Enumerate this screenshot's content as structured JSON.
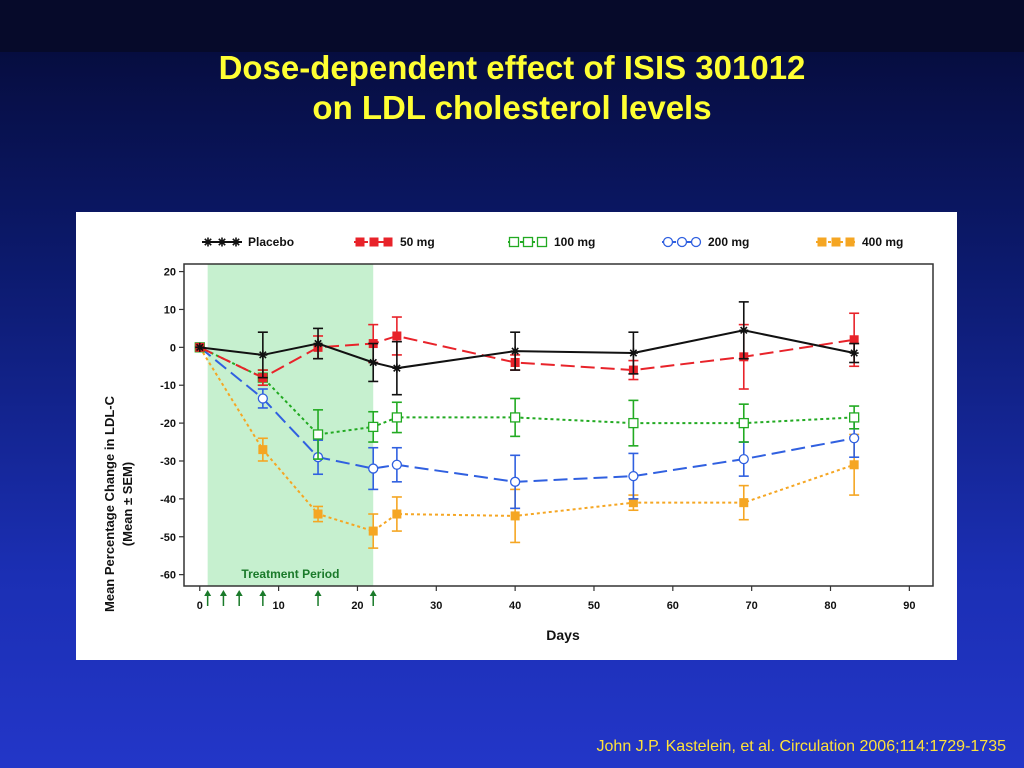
{
  "slide": {
    "title_line1": "Dose-dependent effect of ISIS 301012",
    "title_line2": "on LDL cholesterol levels",
    "citation": "John J.P. Kastelein, et al. Circulation 2006;114:1729-1735"
  },
  "chart_data": {
    "type": "line",
    "xlabel": "Days",
    "ylabel_line1": "Mean Percentage Change in LDL-C",
    "ylabel_line2": "(Mean ± SEM)",
    "xlim": [
      -2,
      93
    ],
    "ylim": [
      -63,
      22
    ],
    "xticks": [
      0,
      10,
      20,
      30,
      40,
      50,
      60,
      70,
      80,
      90
    ],
    "yticks": [
      20,
      10,
      0,
      -10,
      -20,
      -30,
      -40,
      -50,
      -60
    ],
    "shaded_region": {
      "label": "Treatment Period",
      "x_start": 1,
      "x_end": 22,
      "color": "#c6f0cf"
    },
    "dose_days": [
      1,
      3,
      5,
      8,
      15,
      22
    ],
    "dose_marker_color": "#1a7a2a",
    "legend_position": "top",
    "series": [
      {
        "name": "Placebo",
        "color": "#111111",
        "dash": "solid",
        "marker": "star",
        "points": [
          [
            0,
            0
          ],
          [
            8,
            -2
          ],
          [
            15,
            1
          ],
          [
            22,
            -4
          ],
          [
            25,
            -5.5
          ],
          [
            40,
            -1
          ],
          [
            55,
            -1.5
          ],
          [
            69,
            4.5
          ],
          [
            83,
            -1.5
          ]
        ],
        "errors": [
          0,
          6,
          4,
          5,
          7,
          5,
          5.5,
          7.5,
          2.5
        ]
      },
      {
        "name": "50 mg",
        "color": "#e8232a",
        "dash": "longdash",
        "marker": "filled-square",
        "points": [
          [
            0,
            0
          ],
          [
            8,
            -8
          ],
          [
            15,
            0
          ],
          [
            22,
            1
          ],
          [
            25,
            3
          ],
          [
            40,
            -4
          ],
          [
            55,
            -6
          ],
          [
            69,
            -2.5
          ],
          [
            83,
            2
          ]
        ],
        "errors": [
          0,
          2,
          3,
          5,
          5,
          2,
          2.5,
          8.5,
          7
        ]
      },
      {
        "name": "100 mg",
        "color": "#22aa22",
        "dash": "dotted",
        "marker": "open-square",
        "points": [
          [
            0,
            0
          ],
          [
            8,
            -8
          ],
          [
            15,
            -23
          ],
          [
            22,
            -21
          ],
          [
            25,
            -18.5
          ],
          [
            40,
            -18.5
          ],
          [
            55,
            -20
          ],
          [
            69,
            -20
          ],
          [
            83,
            -18.5
          ]
        ],
        "errors": [
          0,
          2,
          6.5,
          4,
          4,
          5,
          6,
          5,
          3
        ]
      },
      {
        "name": "200 mg",
        "color": "#3060e0",
        "dash": "longdash",
        "marker": "open-circle",
        "points": [
          [
            0,
            0
          ],
          [
            8,
            -13.5
          ],
          [
            15,
            -29
          ],
          [
            22,
            -32
          ],
          [
            25,
            -31
          ],
          [
            40,
            -35.5
          ],
          [
            55,
            -34
          ],
          [
            69,
            -29.5
          ],
          [
            83,
            -24
          ]
        ],
        "errors": [
          0,
          2.5,
          4.5,
          5.5,
          4.5,
          7,
          6,
          4.5,
          5
        ]
      },
      {
        "name": "400 mg",
        "color": "#f5a623",
        "dash": "dotted",
        "marker": "filled-square",
        "points": [
          [
            0,
            0
          ],
          [
            8,
            -27
          ],
          [
            15,
            -44
          ],
          [
            22,
            -48.5
          ],
          [
            25,
            -44
          ],
          [
            40,
            -44.5
          ],
          [
            55,
            -41
          ],
          [
            69,
            -41
          ],
          [
            83,
            -31
          ]
        ],
        "errors": [
          0,
          3,
          2,
          4.5,
          4.5,
          7,
          2,
          4.5,
          8
        ]
      }
    ]
  }
}
